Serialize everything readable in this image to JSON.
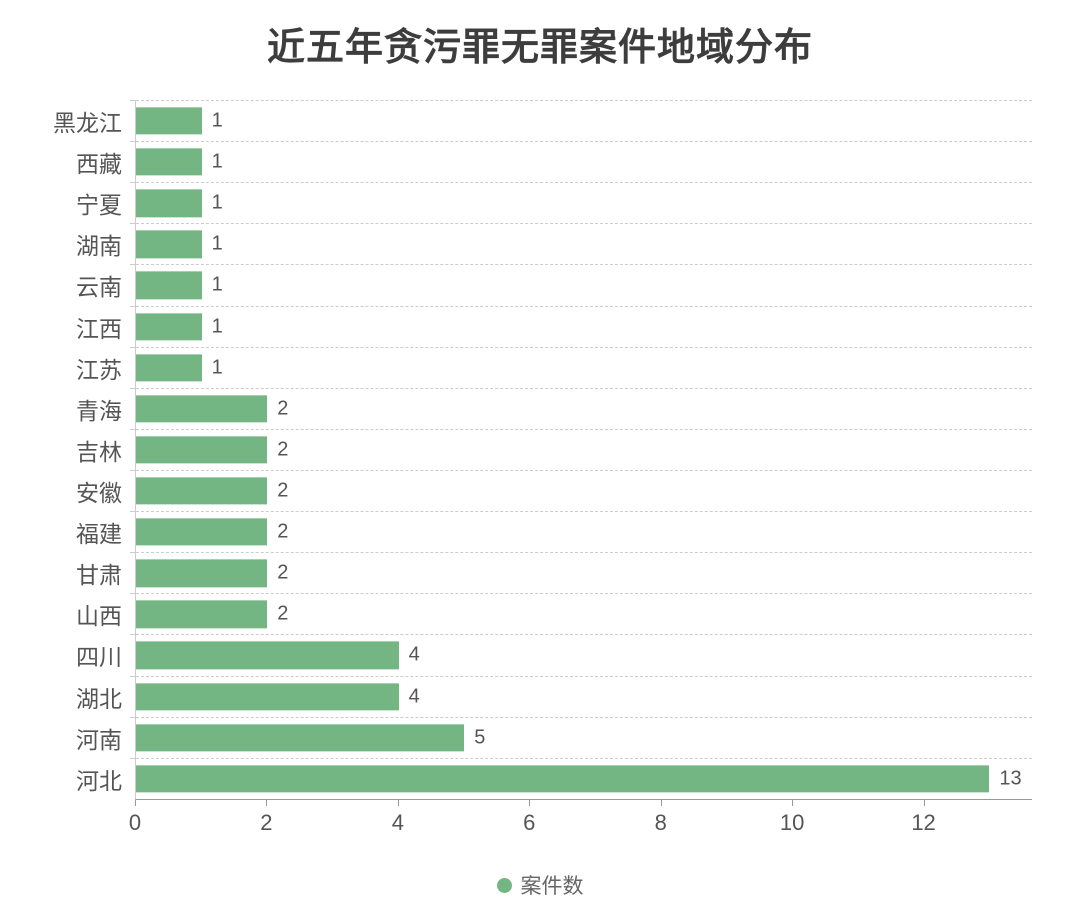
{
  "chart_data": {
    "type": "bar",
    "orientation": "horizontal",
    "title": "近五年贪污罪无罪案件地域分布",
    "categories": [
      "黑龙江",
      "西藏",
      "宁夏",
      "湖南",
      "云南",
      "江西",
      "江苏",
      "青海",
      "吉林",
      "安徽",
      "福建",
      "甘肃",
      "山西",
      "四川",
      "湖北",
      "河南",
      "河北"
    ],
    "categories_order": "top-to-bottom",
    "values": [
      1,
      1,
      1,
      1,
      1,
      1,
      1,
      2,
      2,
      2,
      2,
      2,
      2,
      4,
      4,
      5,
      13
    ],
    "series_name": "案件数",
    "xlabel": "",
    "ylabel": "",
    "xlim": [
      0,
      13.65
    ],
    "xticks": [
      0,
      2,
      4,
      6,
      8,
      10,
      12
    ],
    "grid": "horizontal-dashed",
    "legend": {
      "label": "案件数",
      "position": "bottom-center"
    },
    "colors": {
      "bar": "#74b584",
      "title": "#3d3d3d",
      "axis_label": "#555555",
      "grid_line": "#cccccc",
      "axis_line": "#999999"
    }
  }
}
